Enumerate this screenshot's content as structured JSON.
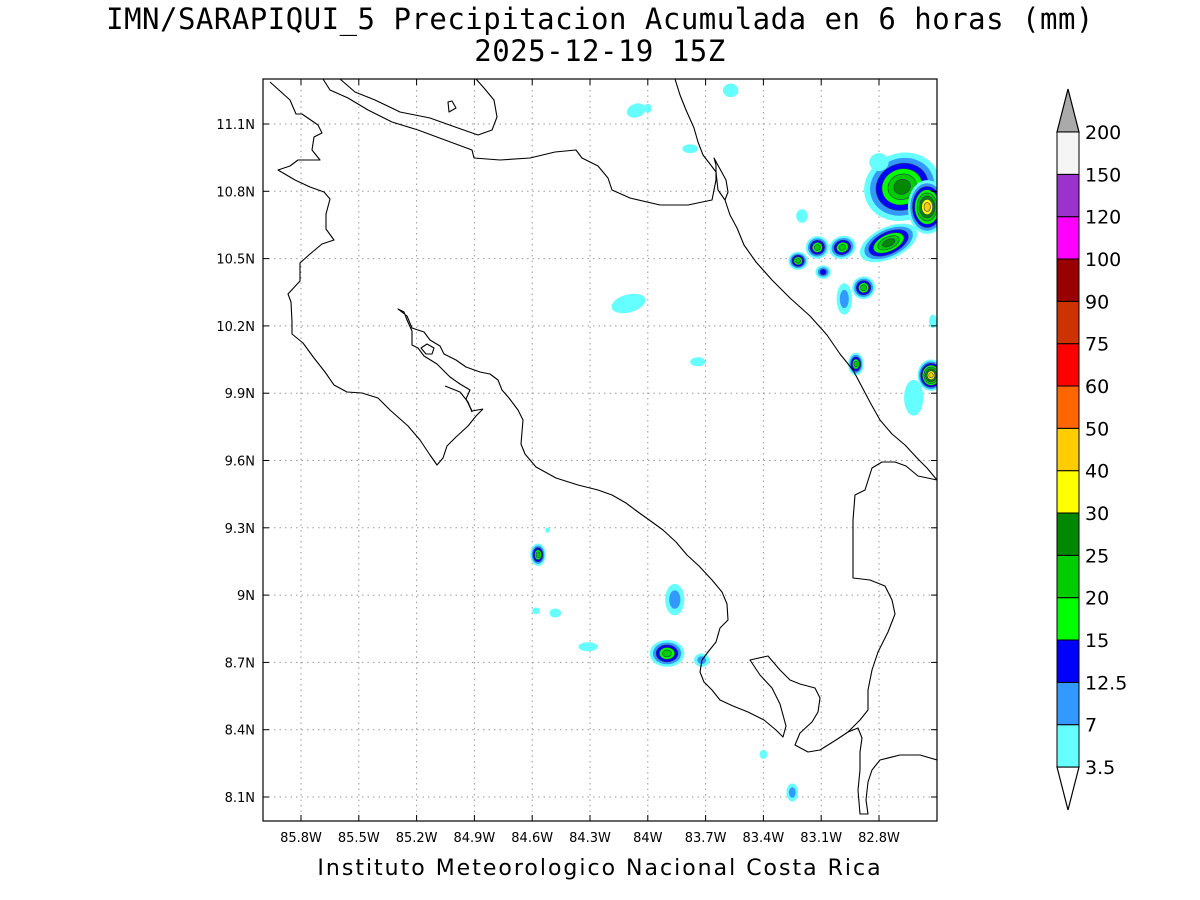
{
  "title": {
    "line1": "IMN/SARAPIQUI_5 Precipitacion Acumulada en 6 horas (mm)",
    "line2": "2025-12-19 15Z"
  },
  "footer": "Instituto Meteorologico Nacional Costa Rica",
  "map": {
    "lon_range": [
      -86.0,
      -82.5
    ],
    "lat_range": [
      8.0,
      11.2
    ],
    "lon_ticks": [
      {
        "value": -85.8,
        "label": "85.8W"
      },
      {
        "value": -85.5,
        "label": "85.5W"
      },
      {
        "value": -85.2,
        "label": "85.2W"
      },
      {
        "value": -84.9,
        "label": "84.9W"
      },
      {
        "value": -84.6,
        "label": "84.6W"
      },
      {
        "value": -84.3,
        "label": "84.3W"
      },
      {
        "value": -84.0,
        "label": "84W"
      },
      {
        "value": -83.7,
        "label": "83.7W"
      },
      {
        "value": -83.4,
        "label": "83.4W"
      },
      {
        "value": -83.1,
        "label": "83.1W"
      },
      {
        "value": -82.8,
        "label": "82.8W"
      }
    ],
    "lat_ticks": [
      {
        "value": 11.1,
        "label": "11.1N"
      },
      {
        "value": 10.8,
        "label": "10.8N"
      },
      {
        "value": 10.5,
        "label": "10.5N"
      },
      {
        "value": 10.2,
        "label": "10.2N"
      },
      {
        "value": 9.9,
        "label": "9.9N"
      },
      {
        "value": 9.6,
        "label": "9.6N"
      },
      {
        "value": 9.3,
        "label": "9.3N"
      },
      {
        "value": 9.0,
        "label": "9N"
      },
      {
        "value": 8.7,
        "label": "8.7N"
      },
      {
        "value": 8.4,
        "label": "8.4N"
      },
      {
        "value": 8.1,
        "label": "8.1N"
      }
    ],
    "grid": "dotted"
  },
  "colorbar": {
    "levels": [
      "3.5",
      "7",
      "12.5",
      "15",
      "20",
      "25",
      "30",
      "40",
      "50",
      "60",
      "75",
      "90",
      "100",
      "120",
      "150",
      "200"
    ],
    "colors": [
      "#66ffff",
      "#3399ff",
      "#0000ff",
      "#00ff00",
      "#00cc00",
      "#008800",
      "#ffff00",
      "#ffcc00",
      "#ff6600",
      "#ff0000",
      "#cc3300",
      "#990000",
      "#ff00ff",
      "#9933cc",
      "#f5f5f5"
    ],
    "over_color": "#aaaaaa"
  },
  "precip_cells": [
    {
      "lon": -82.68,
      "lat": 10.82,
      "rx": 0.2,
      "ry": 0.15,
      "rot": -20,
      "max": "25"
    },
    {
      "lon": -82.55,
      "lat": 10.73,
      "rx": 0.1,
      "ry": 0.12,
      "rot": 0,
      "max": "40"
    },
    {
      "lon": -82.75,
      "lat": 10.57,
      "rx": 0.16,
      "ry": 0.07,
      "rot": -25,
      "max": "25"
    },
    {
      "lon": -82.99,
      "lat": 10.55,
      "rx": 0.07,
      "ry": 0.05,
      "rot": -20,
      "max": "20"
    },
    {
      "lon": -83.12,
      "lat": 10.55,
      "rx": 0.06,
      "ry": 0.05,
      "rot": -20,
      "max": "20"
    },
    {
      "lon": -83.22,
      "lat": 10.49,
      "rx": 0.05,
      "ry": 0.04,
      "rot": 0,
      "max": "20"
    },
    {
      "lon": -83.09,
      "lat": 10.44,
      "rx": 0.04,
      "ry": 0.03,
      "rot": 0,
      "max": "12.5"
    },
    {
      "lon": -82.88,
      "lat": 10.37,
      "rx": 0.06,
      "ry": 0.05,
      "rot": -20,
      "max": "20"
    },
    {
      "lon": -82.98,
      "lat": 10.32,
      "rx": 0.04,
      "ry": 0.07,
      "rot": 0,
      "max": "7"
    },
    {
      "lon": -82.92,
      "lat": 10.03,
      "rx": 0.04,
      "ry": 0.05,
      "rot": 0,
      "max": "20"
    },
    {
      "lon": -82.53,
      "lat": 9.98,
      "rx": 0.07,
      "ry": 0.07,
      "rot": 0,
      "max": "40"
    },
    {
      "lon": -84.57,
      "lat": 9.18,
      "rx": 0.04,
      "ry": 0.05,
      "rot": 0,
      "max": "20"
    },
    {
      "lon": -83.86,
      "lat": 8.98,
      "rx": 0.05,
      "ry": 0.07,
      "rot": 0,
      "max": "7"
    },
    {
      "lon": -83.9,
      "lat": 8.74,
      "rx": 0.09,
      "ry": 0.06,
      "rot": 0,
      "max": "20"
    },
    {
      "lon": -83.72,
      "lat": 8.71,
      "rx": 0.04,
      "ry": 0.03,
      "rot": 0,
      "max": "7"
    },
    {
      "lon": -84.1,
      "lat": 10.3,
      "rx": 0.09,
      "ry": 0.04,
      "rot": -15,
      "max": "3.5"
    },
    {
      "lon": -83.74,
      "lat": 10.04,
      "rx": 0.04,
      "ry": 0.02,
      "rot": 0,
      "max": "3.5"
    },
    {
      "lon": -84.06,
      "lat": 11.16,
      "rx": 0.05,
      "ry": 0.03,
      "rot": -20,
      "max": "3.5"
    },
    {
      "lon": -83.57,
      "lat": 11.25,
      "rx": 0.04,
      "ry": 0.03,
      "rot": 0,
      "max": "3.5"
    },
    {
      "lon": -83.25,
      "lat": 8.12,
      "rx": 0.03,
      "ry": 0.04,
      "rot": 0,
      "max": "7"
    },
    {
      "lon": -83.4,
      "lat": 8.29,
      "rx": 0.02,
      "ry": 0.02,
      "rot": 0,
      "max": "3.5"
    },
    {
      "lon": -84.31,
      "lat": 8.77,
      "rx": 0.05,
      "ry": 0.02,
      "rot": 0,
      "max": "3.5"
    },
    {
      "lon": -84.48,
      "lat": 8.92,
      "rx": 0.03,
      "ry": 0.02,
      "rot": 0,
      "max": "3.5"
    },
    {
      "lon": -84.58,
      "lat": 8.93,
      "rx": 0.02,
      "ry": 0.015,
      "rot": 0,
      "max": "3.5"
    },
    {
      "lon": -84.52,
      "lat": 9.29,
      "rx": 0.012,
      "ry": 0.012,
      "rot": 0,
      "max": "3.5"
    },
    {
      "lon": -82.8,
      "lat": 10.93,
      "rx": 0.05,
      "ry": 0.04,
      "rot": 0,
      "max": "3.5"
    },
    {
      "lon": -82.62,
      "lat": 9.88,
      "rx": 0.05,
      "ry": 0.08,
      "rot": 0,
      "max": "3.5"
    },
    {
      "lon": -82.52,
      "lat": 10.22,
      "rx": 0.02,
      "ry": 0.03,
      "rot": 0,
      "max": "3.5"
    },
    {
      "lon": -83.78,
      "lat": 10.99,
      "rx": 0.04,
      "ry": 0.02,
      "rot": 0,
      "max": "3.5"
    },
    {
      "lon": -83.2,
      "lat": 10.69,
      "rx": 0.03,
      "ry": 0.03,
      "rot": 0,
      "max": "3.5"
    },
    {
      "lon": -84.0,
      "lat": 11.17,
      "rx": 0.02,
      "ry": 0.02,
      "rot": 0,
      "max": "3.5"
    }
  ]
}
